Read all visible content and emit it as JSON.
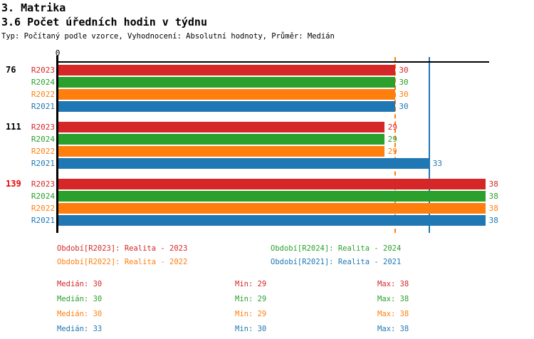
{
  "header": {
    "title": "3. Matrika",
    "subtitle": "3.6 Počet úředních hodin v týdnu",
    "meta": "Typ: Počítaný podle vzorce, Vyhodnocení: Absolutní hodnoty, Průměr: Medián"
  },
  "colors": {
    "red": "#d62728",
    "green": "#2ca02c",
    "orange": "#ff7f0e",
    "blue": "#1f77b4",
    "highlight": "#ee0000",
    "axis": "#000000"
  },
  "chart_data": {
    "type": "bar",
    "orientation": "horizontal",
    "xlim": [
      0,
      38.4
    ],
    "x_ticks": [
      {
        "value": 0,
        "label": "0"
      }
    ],
    "grid": "off",
    "series": [
      {
        "id": "R2023",
        "label": "R2023",
        "color_key": "red"
      },
      {
        "id": "R2024",
        "label": "R2024",
        "color_key": "green"
      },
      {
        "id": "R2022",
        "label": "R2022",
        "color_key": "orange"
      },
      {
        "id": "R2021",
        "label": "R2021",
        "color_key": "blue"
      }
    ],
    "groups": [
      {
        "label": "76",
        "highlighted": false,
        "values": [
          30,
          30,
          30,
          30
        ]
      },
      {
        "label": "111",
        "highlighted": false,
        "values": [
          29,
          29,
          29,
          33
        ]
      },
      {
        "label": "139",
        "highlighted": true,
        "values": [
          38,
          38,
          38,
          38
        ]
      }
    ],
    "reference_lines": [
      {
        "value": 30,
        "color_key": "orange",
        "style": "dashed",
        "meaning": "Medián R2022"
      },
      {
        "value": 33,
        "color_key": "blue",
        "style": "solid",
        "meaning": "Medián R2021"
      }
    ]
  },
  "legend": {
    "items": [
      {
        "text": "Období[R2023]: Realita - 2023",
        "color_key": "red"
      },
      {
        "text": "Období[R2024]: Realita - 2024",
        "color_key": "green"
      },
      {
        "text": "Období[R2022]: Realita - 2022",
        "color_key": "orange"
      },
      {
        "text": "Období[R2021]: Realita - 2021",
        "color_key": "blue"
      }
    ]
  },
  "stats": {
    "rows": [
      {
        "color_key": "red",
        "median": "Medián: 30",
        "min": "Min: 29",
        "max": "Max: 38"
      },
      {
        "color_key": "green",
        "median": "Medián: 30",
        "min": "Min: 29",
        "max": "Max: 38"
      },
      {
        "color_key": "orange",
        "median": "Medián: 30",
        "min": "Min: 29",
        "max": "Max: 38"
      },
      {
        "color_key": "blue",
        "median": "Medián: 33",
        "min": "Min: 30",
        "max": "Max: 38"
      }
    ]
  }
}
